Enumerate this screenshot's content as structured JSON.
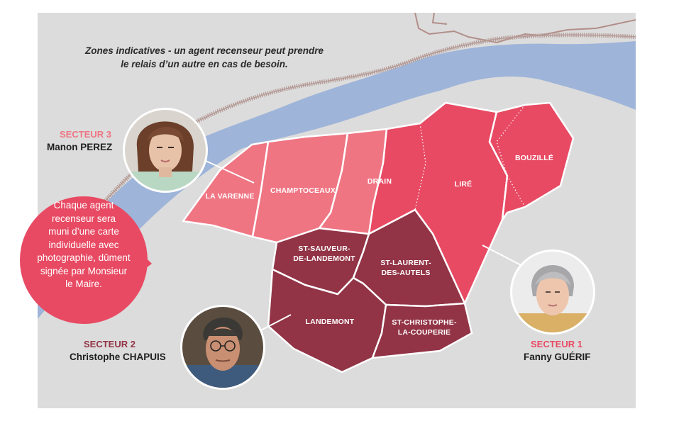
{
  "note": {
    "line1": "Zones indicatives - un agent recenseur peut prendre",
    "line2": "le relais d’un autre en cas de besoin."
  },
  "colors": {
    "background": "#dcdcdc",
    "river": "#9eb4d9",
    "railway": "#b59b97",
    "sector1": "#e84a63",
    "sector2": "#923446",
    "sector3": "#ef7583",
    "bubble": "#e84a63",
    "sector1_title": "#e84a63",
    "sector2_title": "#923446",
    "sector3_title": "#ef7583"
  },
  "zones": {
    "la_varenne": "LA VARENNE",
    "champtoceaux": "CHAMPTOCEAUX",
    "drain": "DRAIN",
    "lire": "LIRÉ",
    "bouzille": "BOUZILLÉ",
    "st_sauveur": [
      "ST-SAUVEUR-",
      "DE-LANDEMONT"
    ],
    "st_laurent": [
      "ST-LAURENT-",
      "DES-AUTELS"
    ],
    "landemont": "LANDEMONT",
    "st_christophe": [
      "ST-CHRISTOPHE-",
      "LA-COUPERIE"
    ]
  },
  "sectors": {
    "s3": {
      "title": "SECTEUR 3",
      "name": "Manon PEREZ"
    },
    "s2": {
      "title": "SECTEUR 2",
      "name": "Christophe CHAPUIS"
    },
    "s1": {
      "title": "SECTEUR 1",
      "name": "Fanny GUÉRIF"
    }
  },
  "bubble": {
    "lines": [
      "Chaque agent",
      "recenseur sera",
      "muni d’une carte",
      "individuelle avec",
      "photographie, dûment",
      "signée par Monsieur",
      "le Maire."
    ]
  },
  "icons": {
    "portrait_s3": "woman-portrait-icon",
    "portrait_s2": "man-portrait-icon",
    "portrait_s1": "woman-portrait-icon"
  }
}
